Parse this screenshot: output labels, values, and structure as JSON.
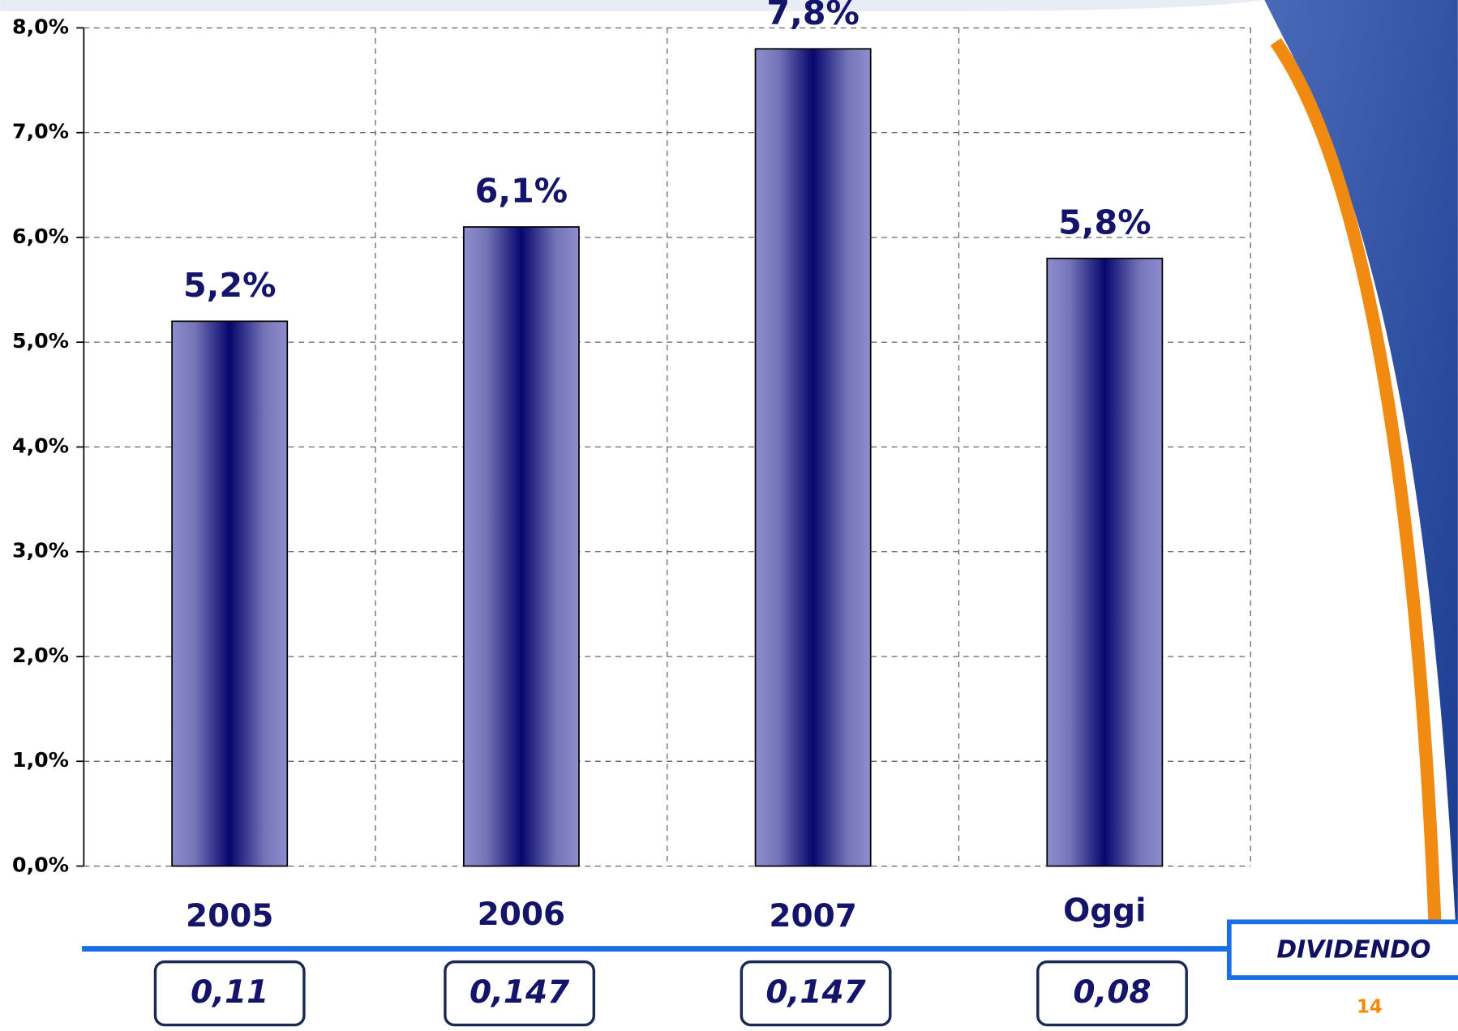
{
  "chart_data": {
    "type": "bar",
    "categories": [
      "2005",
      "2006",
      "2007",
      "Oggi"
    ],
    "values": [
      5.2,
      6.1,
      7.8,
      5.8
    ],
    "value_labels": [
      "5,2%",
      "6,1%",
      "7,8%",
      "5,8%"
    ],
    "color": "#0a0a78",
    "ylim": [
      0,
      8
    ],
    "yticks": [
      {
        "value": 0,
        "label": "0,0%"
      },
      {
        "value": 1,
        "label": "1,0%"
      },
      {
        "value": 2,
        "label": "2,0%"
      },
      {
        "value": 3,
        "label": "3,0%"
      },
      {
        "value": 4,
        "label": "4,0%"
      },
      {
        "value": 5,
        "label": "5,0%"
      },
      {
        "value": 6,
        "label": "6,0%"
      },
      {
        "value": 7,
        "label": "7,0%"
      },
      {
        "value": 8,
        "label": "8,0%"
      }
    ],
    "grid": true,
    "dividend_title": "DIVIDENDO",
    "dividend_values": [
      0.11,
      0.147,
      0.147,
      0.08
    ],
    "dividend_labels": [
      "0,11",
      "0,147",
      "0,147",
      "0,08"
    ],
    "page_number": "14"
  }
}
